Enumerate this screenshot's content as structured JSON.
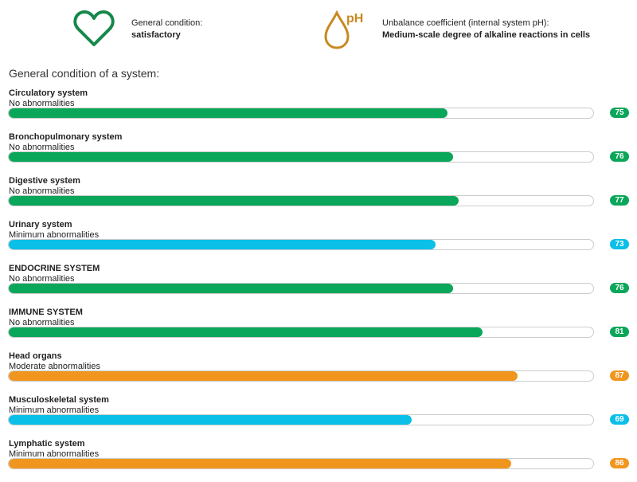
{
  "header": {
    "general_label": "General condition:",
    "general_value": "satisfactory",
    "ph_symbol": "pH",
    "ph_label": "Unbalance coefficient (internal system pH):",
    "ph_value": "Medium-scale degree of alkaline reactions in cells"
  },
  "section_title": "General condition of a system:",
  "colors": {
    "green": "#0aa65a",
    "blue": "#0abfe8",
    "orange": "#f0961e",
    "heart": "#15884a",
    "drop": "#c8881e"
  },
  "systems": [
    {
      "name": "Circulatory system",
      "status": "No abnormalities",
      "value": 75,
      "color": "green"
    },
    {
      "name": "Bronchopulmonary system",
      "status": "No abnormalities",
      "value": 76,
      "color": "green"
    },
    {
      "name": "Digestive system",
      "status": "No abnormalities",
      "value": 77,
      "color": "green"
    },
    {
      "name": "Urinary system",
      "status": "Minimum abnormalities",
      "value": 73,
      "color": "blue"
    },
    {
      "name": "ENDOCRINE SYSTEM",
      "status": "No abnormalities",
      "value": 76,
      "color": "green"
    },
    {
      "name": "IMMUNE SYSTEM",
      "status": "No abnormalities",
      "value": 81,
      "color": "green"
    },
    {
      "name": "Head organs",
      "status": "Moderate abnormalities",
      "value": 87,
      "color": "orange"
    },
    {
      "name": "Musculoskeletal system",
      "status": "Minimum abnormalities",
      "value": 69,
      "color": "blue"
    },
    {
      "name": "Lymphatic system",
      "status": "Minimum abnormalities",
      "value": 86,
      "color": "orange"
    }
  ]
}
